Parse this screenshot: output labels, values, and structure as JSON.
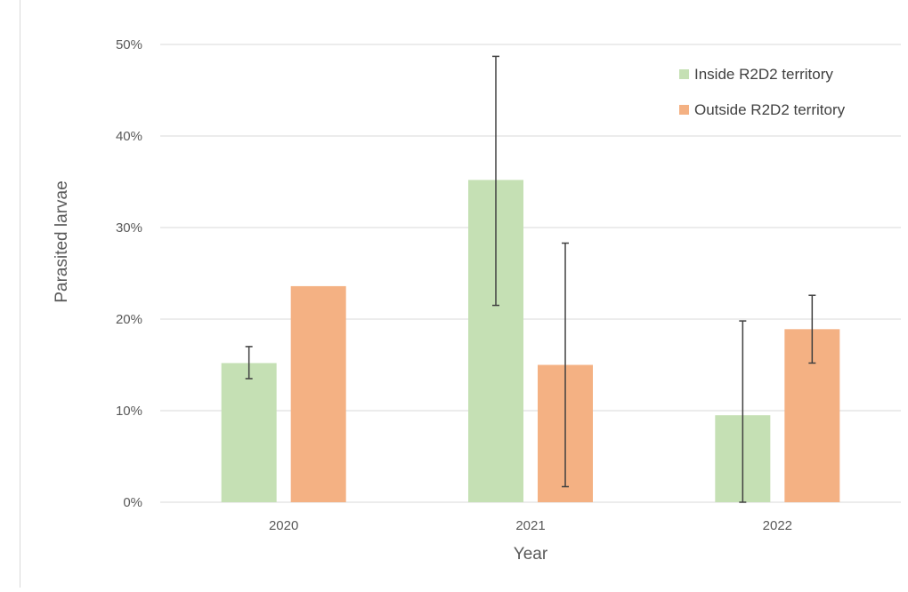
{
  "chart_data": {
    "type": "bar",
    "categories": [
      "2020",
      "2021",
      "2022"
    ],
    "series": [
      {
        "name": "Inside R2D2 territory",
        "color": "#c5e0b4",
        "values": [
          0.152,
          0.352,
          0.095
        ],
        "error_low": [
          0.135,
          0.215,
          0.0
        ],
        "error_high": [
          0.17,
          0.487,
          0.198
        ]
      },
      {
        "name": "Outside R2D2 territory",
        "color": "#f4b183",
        "values": [
          0.236,
          0.15,
          0.189
        ],
        "error_low": [
          null,
          0.017,
          0.152
        ],
        "error_high": [
          null,
          0.283,
          0.226
        ]
      }
    ],
    "xlabel": "Year",
    "ylabel": "Parasited larvae",
    "ylim": [
      0,
      0.5
    ],
    "yticks": [
      "0%",
      "10%",
      "20%",
      "30%",
      "40%",
      "50%"
    ],
    "grid": true,
    "legend_position": "top-right",
    "gridline_color": "#d9d9d9",
    "errorbar_color": "#404040"
  }
}
